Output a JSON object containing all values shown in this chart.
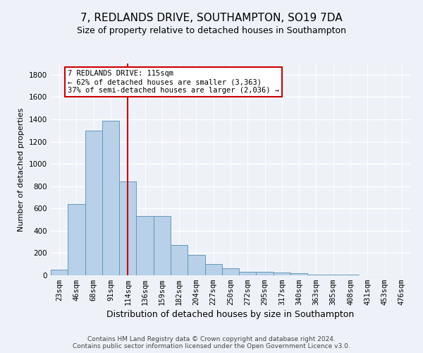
{
  "title_line1": "7, REDLANDS DRIVE, SOUTHAMPTON, SO19 7DA",
  "title_line2": "Size of property relative to detached houses in Southampton",
  "xlabel": "Distribution of detached houses by size in Southampton",
  "ylabel": "Number of detached properties",
  "categories": [
    "23sqm",
    "46sqm",
    "68sqm",
    "91sqm",
    "114sqm",
    "136sqm",
    "159sqm",
    "182sqm",
    "204sqm",
    "227sqm",
    "250sqm",
    "272sqm",
    "295sqm",
    "317sqm",
    "340sqm",
    "363sqm",
    "385sqm",
    "408sqm",
    "431sqm",
    "453sqm",
    "476sqm"
  ],
  "values": [
    50,
    640,
    1300,
    1390,
    840,
    530,
    530,
    270,
    185,
    100,
    62,
    30,
    30,
    25,
    18,
    8,
    5,
    5,
    3,
    2,
    2
  ],
  "bar_color": "#b8d0e8",
  "bar_edge_color": "#6699bb",
  "red_line_index": 4,
  "annotation_title": "7 REDLANDS DRIVE: 115sqm",
  "annotation_line1": "← 62% of detached houses are smaller (3,363)",
  "annotation_line2": "37% of semi-detached houses are larger (2,036) →",
  "annotation_box_facecolor": "#ffffff",
  "annotation_box_edgecolor": "#cc0000",
  "red_line_color": "#cc0000",
  "ylim": [
    0,
    1900
  ],
  "yticks": [
    0,
    200,
    400,
    600,
    800,
    1000,
    1200,
    1400,
    1600,
    1800
  ],
  "footer_line1": "Contains HM Land Registry data © Crown copyright and database right 2024.",
  "footer_line2": "Contains public sector information licensed under the Open Government Licence v3.0.",
  "background_color": "#eef2f8",
  "grid_color": "#ffffff",
  "title_fontsize": 11,
  "subtitle_fontsize": 9,
  "ylabel_fontsize": 8,
  "xlabel_fontsize": 9,
  "tick_fontsize": 7.5,
  "annotation_fontsize": 7.5,
  "footer_fontsize": 6.5
}
